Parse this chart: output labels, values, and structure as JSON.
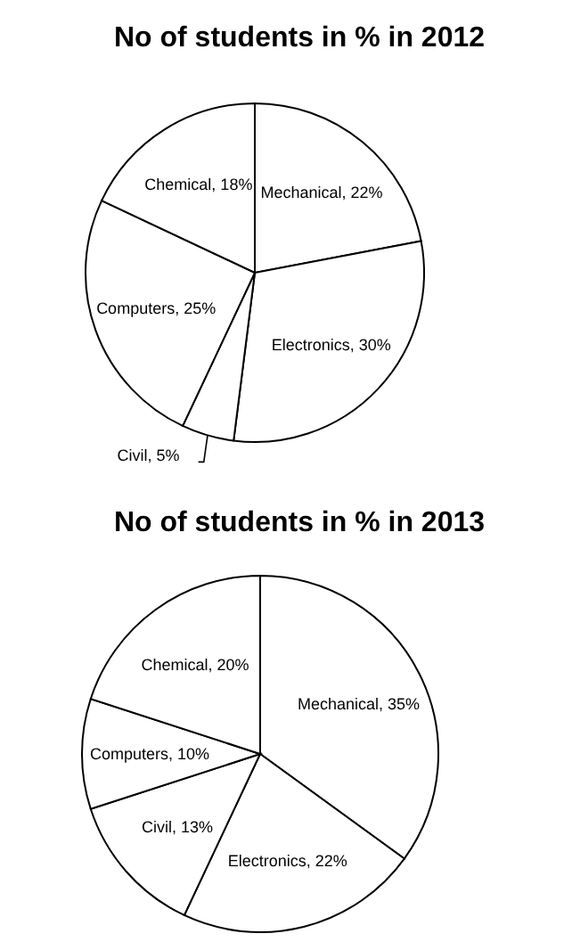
{
  "chart_data": [
    {
      "type": "pie",
      "title": "No of students  in % in 2012",
      "categories": [
        "Mechanical",
        "Electronics",
        "Civil",
        "Computers",
        "Chemical"
      ],
      "values": [
        22,
        30,
        5,
        25,
        18
      ],
      "colors": [
        "#ffffff",
        "#ffffff",
        "#ffffff",
        "#ffffff",
        "#ffffff"
      ],
      "value_labels": [
        "22%",
        "30%",
        "5%",
        "25%",
        "18%"
      ]
    },
    {
      "type": "pie",
      "title": "No of students  in % in 2013",
      "categories": [
        "Mechanical",
        "Electronics",
        "Civil",
        "Computers",
        "Chemical"
      ],
      "values": [
        35,
        22,
        13,
        10,
        20
      ],
      "colors": [
        "#ffffff",
        "#ffffff",
        "#ffffff",
        "#ffffff",
        "#ffffff"
      ],
      "value_labels": [
        "35%",
        "22%",
        "13%",
        "10%",
        "20%"
      ]
    }
  ]
}
